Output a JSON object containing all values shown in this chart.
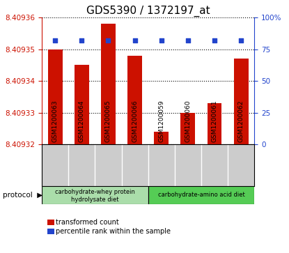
{
  "title": "GDS5390 / 1372197_at",
  "categories": [
    "GSM1200063",
    "GSM1200064",
    "GSM1200065",
    "GSM1200066",
    "GSM1200059",
    "GSM1200060",
    "GSM1200061",
    "GSM1200062"
  ],
  "bar_values": [
    8.40935,
    8.409345,
    8.409358,
    8.409348,
    8.409324,
    8.40933,
    8.409333,
    8.409347
  ],
  "blue_values": [
    82,
    82,
    82,
    82,
    82,
    82,
    82,
    82
  ],
  "ylim_left": [
    8.40932,
    8.40936
  ],
  "ylim_right": [
    0,
    100
  ],
  "yticks_left": [
    8.40932,
    8.40933,
    8.40934,
    8.40935,
    8.40936
  ],
  "yticks_right": [
    0,
    25,
    50,
    75,
    100
  ],
  "bar_color": "#cc1100",
  "blue_color": "#2244cc",
  "group1_label_line1": "carbohydrate-whey protein",
  "group1_label_line2": "hydrolysate diet",
  "group2_label": "carbohydrate-amino acid diet",
  "group1_count": 4,
  "group2_count": 4,
  "group1_color": "#aaddaa",
  "group2_color": "#55cc55",
  "label_bg_color": "#cccccc",
  "protocol_label": "protocol",
  "legend_bar_label": "transformed count",
  "legend_dot_label": "percentile rank within the sample",
  "title_fontsize": 11,
  "tick_fontsize": 7.5,
  "xlabel_fontsize": 6.5,
  "bar_width": 0.55,
  "baseline": 8.40932
}
